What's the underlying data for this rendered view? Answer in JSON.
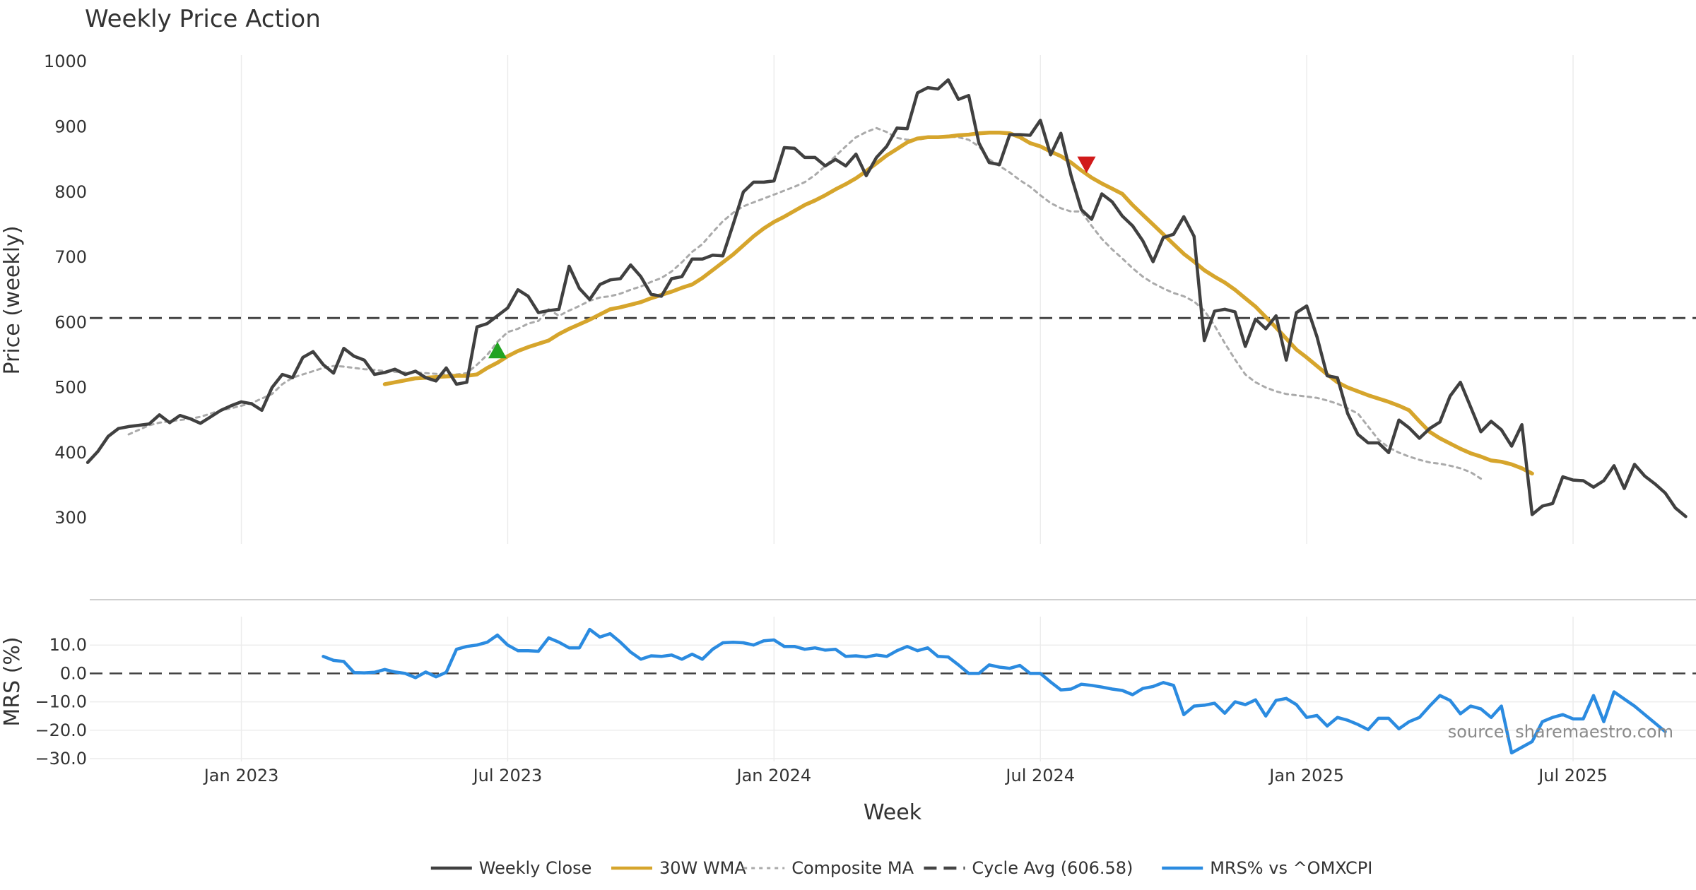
{
  "chart_data": {
    "type": "line",
    "title": "Weekly Price Action",
    "source": "source: sharemaestro.com",
    "x_title": "Week",
    "x_ticks": [
      {
        "label": "Jan 2023",
        "w": 15
      },
      {
        "label": "Jul 2023",
        "w": 41
      },
      {
        "label": "Jan 2024",
        "w": 67
      },
      {
        "label": "Jul 2024",
        "w": 93
      },
      {
        "label": "Jan 2025",
        "w": 119
      },
      {
        "label": "Jul 2025",
        "w": 145
      }
    ],
    "x_range": [
      0.2,
      157
    ],
    "price_panel": {
      "ylabel": "Price (weekly)",
      "ylim": [
        260,
        1010
      ],
      "yticks": [
        300,
        400,
        500,
        600,
        700,
        800,
        900,
        1000
      ],
      "cycle_avg": 606.58,
      "signals": [
        {
          "type": "buy",
          "w": 40,
          "price": 556
        },
        {
          "type": "sell",
          "w": 97.5,
          "price": 843
        }
      ]
    },
    "mrs_panel": {
      "ylabel": "MRS (%)",
      "ylim": [
        -31,
        20
      ],
      "yticks": [
        10,
        0,
        -10,
        -20,
        -30
      ],
      "ytick_labels": [
        "10.0",
        "0.0",
        "−10.0",
        "−20.0",
        "−30.0"
      ],
      "zero_line": 0
    },
    "series": [
      {
        "name": "Weekly Close",
        "color": "#404040",
        "style": "solid",
        "panel": "price",
        "start_week": 0,
        "values": [
          385,
          402,
          425,
          437,
          440,
          442,
          444,
          458,
          446,
          457,
          452,
          445,
          455,
          465,
          472,
          478,
          475,
          465,
          500,
          520,
          515,
          546,
          555,
          535,
          522,
          560,
          548,
          542,
          520,
          523,
          528,
          520,
          525,
          515,
          510,
          530,
          505,
          508,
          593,
          598,
          610,
          622,
          650,
          640,
          615,
          618,
          620,
          686,
          652,
          635,
          658,
          665,
          667,
          688,
          670,
          643,
          640,
          667,
          670,
          697,
          697,
          703,
          702,
          750,
          800,
          815,
          815,
          817,
          868,
          867,
          853,
          853,
          840,
          850,
          840,
          858,
          825,
          853,
          870,
          898,
          897,
          952,
          960,
          958,
          972,
          942,
          948,
          875,
          845,
          842,
          888,
          888,
          887,
          910,
          857,
          890,
          825,
          773,
          758,
          797,
          785,
          763,
          748,
          725,
          693,
          730,
          735,
          762,
          732,
          572,
          617,
          620,
          616,
          563,
          605,
          590,
          610,
          542,
          615,
          625,
          578,
          518,
          515,
          460,
          428,
          415,
          415,
          400,
          450,
          438,
          422,
          437,
          447,
          487,
          508,
          470,
          432,
          448,
          435,
          410,
          443,
          305,
          318,
          322,
          363,
          358,
          357,
          347,
          357,
          380,
          345,
          382,
          364,
          352,
          338,
          315,
          302
        ]
      },
      {
        "name": "30W WMA",
        "color": "#d6a52c",
        "style": "solid",
        "panel": "price",
        "start_week": 29,
        "values": [
          505,
          508,
          511,
          514,
          515,
          516,
          517,
          518,
          518,
          520,
          530,
          538,
          548,
          556,
          562,
          567,
          572,
          582,
          590,
          597,
          604,
          612,
          620,
          623,
          627,
          631,
          637,
          642,
          647,
          653,
          658,
          668,
          680,
          692,
          704,
          718,
          732,
          744,
          754,
          762,
          771,
          780,
          787,
          795,
          804,
          812,
          821,
          832,
          844,
          856,
          866,
          876,
          882,
          884,
          884,
          885,
          887,
          888,
          890,
          891,
          891,
          890,
          884,
          875,
          870,
          862,
          855,
          845,
          833,
          822,
          813,
          805,
          797,
          780,
          765,
          750,
          735,
          720,
          705,
          693,
          680,
          670,
          661,
          650,
          637,
          624,
          608,
          592,
          575,
          558,
          546,
          533,
          520,
          508,
          500,
          494,
          488,
          483,
          478,
          472,
          465,
          448,
          432,
          422,
          414,
          406,
          399,
          394,
          388,
          386,
          382,
          376,
          368
        ]
      },
      {
        "name": "Composite MA",
        "color": "#aaaaaa",
        "style": "dotted",
        "panel": "price",
        "start_week": 4,
        "values": [
          428,
          435,
          442,
          446,
          448,
          450,
          452,
          455,
          460,
          465,
          468,
          472,
          476,
          483,
          490,
          505,
          515,
          520,
          525,
          530,
          533,
          532,
          530,
          528,
          527,
          525,
          524,
          523,
          523,
          522,
          521,
          520,
          520,
          522,
          535,
          550,
          570,
          585,
          590,
          598,
          602,
          620,
          610,
          618,
          625,
          633,
          638,
          640,
          644,
          650,
          655,
          662,
          668,
          678,
          692,
          708,
          720,
          738,
          755,
          768,
          778,
          784,
          790,
          796,
          802,
          808,
          815,
          826,
          840,
          855,
          870,
          884,
          892,
          898,
          892,
          883,
          880,
          880,
          883,
          885,
          885,
          884,
          880,
          870,
          850,
          840,
          830,
          818,
          808,
          795,
          783,
          775,
          770,
          770,
          748,
          728,
          712,
          698,
          683,
          670,
          660,
          652,
          645,
          640,
          632,
          618,
          595,
          568,
          543,
          520,
          508,
          500,
          494,
          490,
          488,
          486,
          484,
          480,
          475,
          468,
          460,
          440,
          420,
          408,
          400,
          394,
          389,
          385,
          383,
          380,
          376,
          370,
          360
        ]
      },
      {
        "name": "MRS% vs ^OMXCPI",
        "color": "#2b8be0",
        "style": "solid",
        "panel": "mrs",
        "start_week": 23,
        "values": [
          6,
          4.6,
          4.2,
          0.3,
          0.2,
          0.4,
          1.4,
          0.5,
          0,
          -1.5,
          0.5,
          -1.2,
          0.4,
          8.5,
          9.5,
          10,
          11,
          13.5,
          10,
          8,
          8,
          7.8,
          12.5,
          11,
          9,
          9,
          15.5,
          12.8,
          14,
          11,
          7.5,
          5,
          6.2,
          6,
          6.5,
          5,
          6.8,
          5,
          8.5,
          10.8,
          11,
          10.8,
          10,
          11.5,
          11.8,
          9.5,
          9.5,
          8.5,
          9,
          8.2,
          8.5,
          6,
          6.2,
          5.8,
          6.5,
          6,
          8,
          9.5,
          8,
          9,
          6,
          5.8,
          3,
          0,
          0,
          3,
          2.2,
          1.8,
          2.8,
          0,
          0,
          -3,
          -5.8,
          -5.5,
          -3.8,
          -4.2,
          -4.8,
          -5.5,
          -6,
          -7.5,
          -5.3,
          -4.6,
          -3.2,
          -4.2,
          -14.5,
          -11.5,
          -11.2,
          -10.5,
          -14,
          -10,
          -11,
          -9.3,
          -15,
          -9.5,
          -8.8,
          -11,
          -15.5,
          -14.8,
          -18.5,
          -15.5,
          -16.5,
          -18,
          -19.8,
          -15.8,
          -15.8,
          -19.5,
          -17,
          -15.5,
          -11.5,
          -7.8,
          -9.5,
          -14.2,
          -11.5,
          -12.5,
          -15.5,
          -11.5,
          -28,
          -26,
          -24,
          -17,
          -15.5,
          -14.5,
          -16,
          -16,
          -7.8,
          -17,
          -6.5,
          -9,
          -11.5,
          -14.5,
          -17.5,
          -20.5
        ]
      }
    ]
  }
}
